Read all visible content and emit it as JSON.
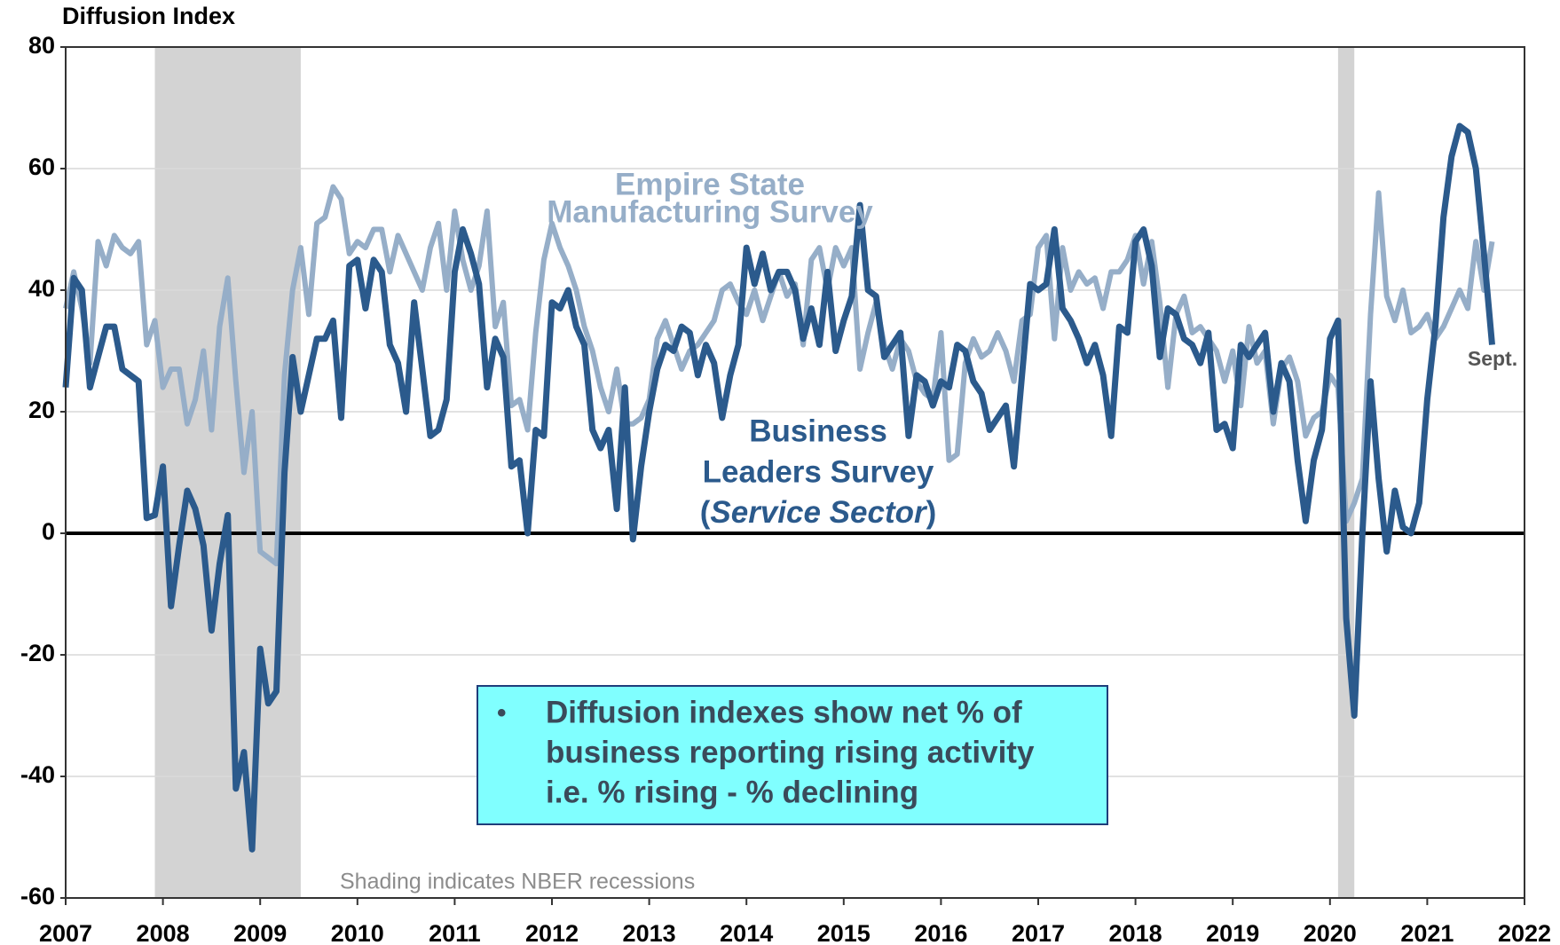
{
  "chart_data": {
    "type": "line",
    "ylabel": "Diffusion Index",
    "xlim": [
      2007,
      2022
    ],
    "xticks": [
      2007,
      2008,
      2009,
      2010,
      2011,
      2012,
      2013,
      2014,
      2015,
      2016,
      2017,
      2018,
      2019,
      2020,
      2021,
      2022
    ],
    "ylim": [
      -60,
      80
    ],
    "yticks": [
      -60,
      -40,
      -20,
      0,
      20,
      40,
      60,
      80
    ],
    "grid": true,
    "recessions": [
      [
        2007.917,
        2009.417
      ],
      [
        2020.083,
        2020.25
      ]
    ],
    "recession_color": "#d3d3d3",
    "x": [
      2007.0,
      2007.083,
      2007.167,
      2007.25,
      2007.333,
      2007.417,
      2007.5,
      2007.583,
      2007.667,
      2007.75,
      2007.833,
      2007.917,
      2008.0,
      2008.083,
      2008.167,
      2008.25,
      2008.333,
      2008.417,
      2008.5,
      2008.583,
      2008.667,
      2008.75,
      2008.833,
      2008.917,
      2009.0,
      2009.083,
      2009.167,
      2009.25,
      2009.333,
      2009.417,
      2009.5,
      2009.583,
      2009.667,
      2009.75,
      2009.833,
      2009.917,
      2010.0,
      2010.083,
      2010.167,
      2010.25,
      2010.333,
      2010.417,
      2010.5,
      2010.583,
      2010.667,
      2010.75,
      2010.833,
      2010.917,
      2011.0,
      2011.083,
      2011.167,
      2011.25,
      2011.333,
      2011.417,
      2011.5,
      2011.583,
      2011.667,
      2011.75,
      2011.833,
      2011.917,
      2012.0,
      2012.083,
      2012.167,
      2012.25,
      2012.333,
      2012.417,
      2012.5,
      2012.583,
      2012.667,
      2012.75,
      2012.833,
      2012.917,
      2013.0,
      2013.083,
      2013.167,
      2013.25,
      2013.333,
      2013.417,
      2013.5,
      2013.583,
      2013.667,
      2013.75,
      2013.833,
      2013.917,
      2014.0,
      2014.083,
      2014.167,
      2014.25,
      2014.333,
      2014.417,
      2014.5,
      2014.583,
      2014.667,
      2014.75,
      2014.833,
      2014.917,
      2015.0,
      2015.083,
      2015.167,
      2015.25,
      2015.333,
      2015.417,
      2015.5,
      2015.583,
      2015.667,
      2015.75,
      2015.833,
      2015.917,
      2016.0,
      2016.083,
      2016.167,
      2016.25,
      2016.333,
      2016.417,
      2016.5,
      2016.583,
      2016.667,
      2016.75,
      2016.833,
      2016.917,
      2017.0,
      2017.083,
      2017.167,
      2017.25,
      2017.333,
      2017.417,
      2017.5,
      2017.583,
      2017.667,
      2017.75,
      2017.833,
      2017.917,
      2018.0,
      2018.083,
      2018.167,
      2018.25,
      2018.333,
      2018.417,
      2018.5,
      2018.583,
      2018.667,
      2018.75,
      2018.833,
      2018.917,
      2019.0,
      2019.083,
      2019.167,
      2019.25,
      2019.333,
      2019.417,
      2019.5,
      2019.583,
      2019.667,
      2019.75,
      2019.833,
      2019.917,
      2020.0,
      2020.083,
      2020.167,
      2020.25,
      2020.333,
      2020.417,
      2020.5,
      2020.583,
      2020.667,
      2020.75,
      2020.833,
      2020.917,
      2021.0,
      2021.083,
      2021.167,
      2021.25,
      2021.333,
      2021.417,
      2021.5,
      2021.583,
      2021.667
    ],
    "series": [
      {
        "name": "Empire State Manufacturing Survey",
        "color": "#96aec8",
        "values": [
          37,
          43,
          37,
          28,
          48,
          44,
          49,
          47,
          46,
          48,
          31,
          35,
          24,
          27,
          27,
          18,
          22,
          30,
          17,
          34,
          42,
          25,
          10,
          20,
          -3,
          -4,
          -5,
          26,
          40,
          47,
          36,
          51,
          52,
          57,
          55,
          46,
          48,
          47,
          50,
          50,
          43,
          49,
          46,
          43,
          40,
          47,
          51,
          40,
          53,
          45,
          40,
          44,
          53,
          34,
          38,
          21,
          22,
          17,
          33,
          45,
          51,
          47,
          44,
          40,
          34,
          30,
          24,
          20,
          27,
          18,
          18,
          19,
          22,
          32,
          35,
          31,
          27,
          30,
          31,
          33,
          35,
          40,
          41,
          38,
          36,
          40,
          35,
          39,
          43,
          39,
          41,
          31,
          45,
          47,
          40,
          47,
          44,
          47,
          27,
          33,
          38,
          31,
          27,
          32,
          30,
          25,
          23,
          22,
          33,
          12,
          13,
          28,
          32,
          29,
          30,
          33,
          30,
          25,
          35,
          36,
          47,
          49,
          32,
          47,
          40,
          43,
          41,
          42,
          37,
          43,
          43,
          45,
          49,
          41,
          48,
          38,
          24,
          36,
          39,
          33,
          34,
          32,
          30,
          25,
          30,
          21,
          34,
          28,
          30,
          18,
          27,
          29,
          25,
          16,
          19,
          20,
          26,
          24,
          2,
          5,
          9,
          36,
          56,
          39,
          35,
          40,
          33,
          34,
          36,
          32,
          34,
          37,
          40,
          37,
          48,
          40,
          48
        ]
      },
      {
        "name": "Business Leaders Survey (Service Sector)",
        "color": "#2b5a8c",
        "values": [
          24,
          42,
          40,
          24,
          29,
          34,
          34,
          27,
          26,
          25,
          2.5,
          3,
          11,
          -12,
          -2,
          7,
          4,
          -2,
          -16,
          -5,
          3,
          -42,
          -36,
          -52,
          -19,
          -28,
          -26,
          10,
          29,
          20,
          26,
          32,
          32,
          35,
          19,
          44,
          45,
          37,
          45,
          43,
          31,
          28,
          20,
          38,
          27,
          16,
          17,
          22,
          43,
          50,
          46,
          41,
          24,
          32,
          29,
          11,
          12,
          0,
          17,
          16,
          38,
          37,
          40,
          34,
          31,
          17,
          14,
          17,
          4,
          24,
          -1,
          11,
          20,
          27,
          31,
          30,
          34,
          33,
          26,
          31,
          28,
          19,
          26,
          31,
          47,
          41,
          46,
          40,
          43,
          43,
          40,
          32,
          37,
          31,
          43,
          30,
          35,
          39,
          54,
          40,
          39,
          29,
          31,
          33,
          16,
          26,
          25,
          21,
          25,
          24,
          31,
          30,
          25,
          23,
          17,
          19,
          21,
          11,
          26,
          41,
          40,
          41,
          50,
          37,
          35,
          32,
          28,
          31,
          26,
          16,
          34,
          33,
          48,
          50,
          44,
          29,
          37,
          36,
          32,
          31,
          28,
          33,
          17,
          18,
          14,
          31,
          29,
          31,
          33,
          20,
          28,
          25,
          12,
          2,
          12,
          17,
          32,
          35,
          -14,
          -30,
          0,
          25,
          9,
          -3,
          7,
          1,
          0,
          5,
          22,
          34,
          52,
          62,
          67,
          66,
          60,
          46,
          31
        ]
      }
    ],
    "empire_label": [
      "Empire State",
      "Manufacturing Survey"
    ],
    "business_label": [
      "Business",
      "Leaders Survey",
      "(",
      "Service Sector",
      ")"
    ],
    "end_label": "Sept.",
    "box_text": [
      "•",
      "Diffusion indexes show net % of",
      "business reporting rising activity",
      "i.e. % rising - % declining"
    ],
    "note": "Shading indicates NBER recessions"
  }
}
